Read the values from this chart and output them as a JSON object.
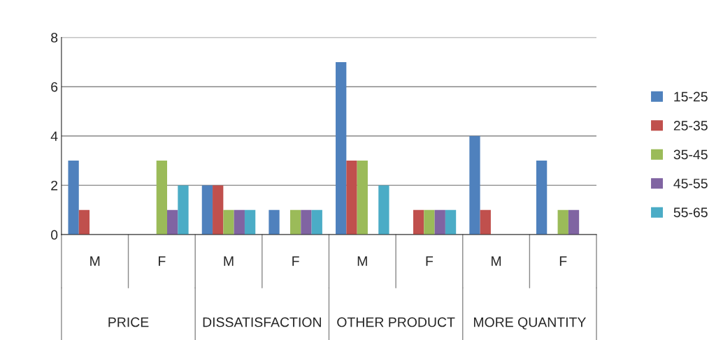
{
  "chart_data": {
    "type": "bar",
    "categories": [
      "M",
      "F",
      "M",
      "F",
      "M",
      "F",
      "M",
      "F"
    ],
    "series": [
      {
        "name": "15-25",
        "color": "#4f81bd",
        "values": [
          3,
          0,
          2,
          1,
          7,
          0,
          4,
          3
        ]
      },
      {
        "name": "25-35",
        "color": "#c0504d",
        "values": [
          1,
          0,
          2,
          0,
          3,
          1,
          1,
          0
        ]
      },
      {
        "name": "35-45",
        "color": "#9bbb59",
        "values": [
          0,
          3,
          1,
          1,
          3,
          1,
          0,
          1
        ]
      },
      {
        "name": "45-55",
        "color": "#8064a2",
        "values": [
          0,
          1,
          1,
          1,
          0,
          1,
          0,
          1
        ]
      },
      {
        "name": "55-65",
        "color": "#4bacc6",
        "values": [
          0,
          2,
          1,
          1,
          2,
          1,
          0,
          0
        ]
      }
    ],
    "annotations": [
      "PRICE",
      "DISSATISFACTION",
      "OTHER PRODUCT",
      "MORE QUANTITY"
    ],
    "ylim": [
      0,
      8
    ],
    "yticks": [
      0,
      2,
      4,
      6,
      8
    ],
    "grid": "y",
    "legend": "right"
  }
}
